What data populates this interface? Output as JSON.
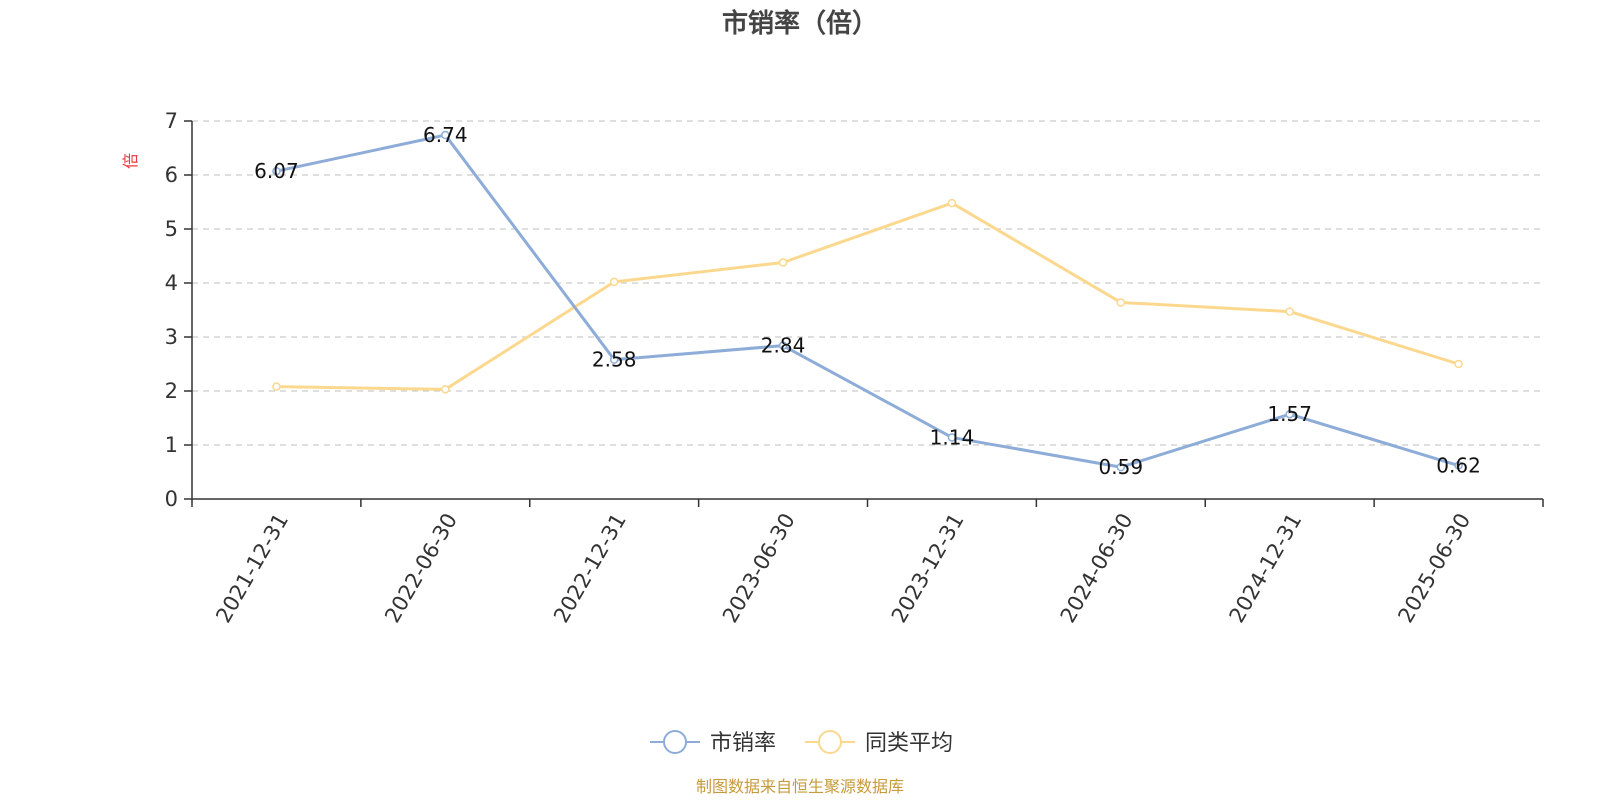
{
  "chart_data": {
    "type": "line",
    "title": "市销率（倍）",
    "ylabel": "倍",
    "xlabel": "",
    "x": [
      "2021-12-31",
      "2022-06-30",
      "2022-12-31",
      "2023-06-30",
      "2023-12-31",
      "2024-06-30",
      "2024-12-31",
      "2025-06-30"
    ],
    "ylim": [
      0,
      7
    ],
    "yticks": [
      0,
      1,
      2,
      3,
      4,
      5,
      6,
      7
    ],
    "grid": true,
    "legend_position": "bottom",
    "series": [
      {
        "name": "市销率",
        "values": [
          6.07,
          6.74,
          2.58,
          2.84,
          1.14,
          0.59,
          1.57,
          0.62
        ],
        "color": "#8eacd8",
        "show_labels": true
      },
      {
        "name": "同类平均",
        "values": [
          2.08,
          2.03,
          4.02,
          4.38,
          5.48,
          3.64,
          3.47,
          2.5
        ],
        "color": "#fbd88e",
        "show_labels": false
      }
    ],
    "source": "制图数据来自恒生聚源数据库"
  }
}
